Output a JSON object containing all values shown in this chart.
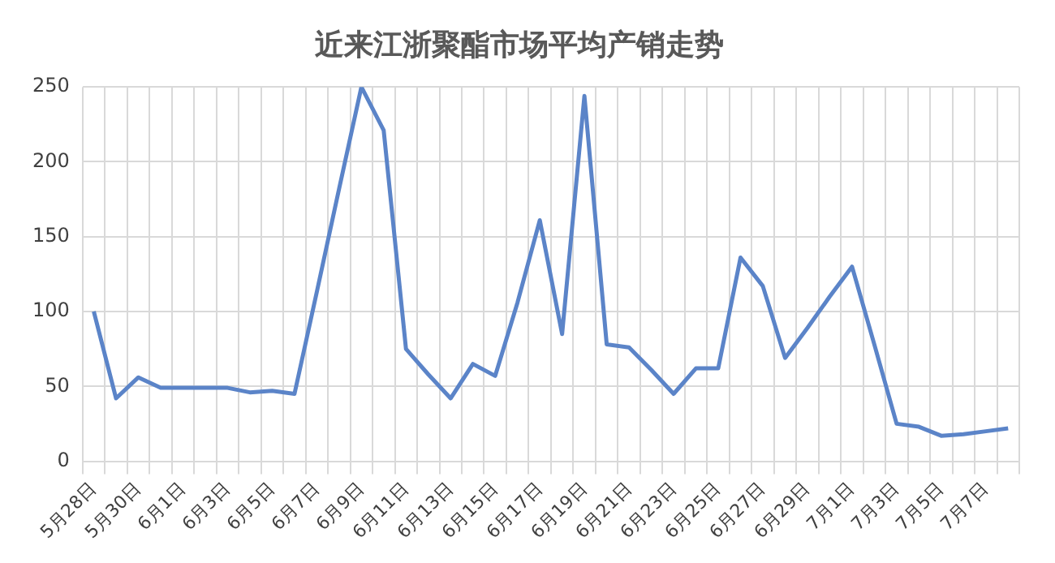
{
  "chart_data": {
    "type": "line",
    "title": "近来江浙聚酯市场平均产销走势",
    "categories": [
      "5月28日",
      null,
      "5月30日",
      null,
      "6月1日",
      null,
      "6月3日",
      null,
      "6月5日",
      null,
      "6月7日",
      null,
      "6月9日",
      null,
      "6月11日",
      null,
      "6月13日",
      null,
      "6月15日",
      null,
      "6月17日",
      null,
      "6月19日",
      null,
      "6月21日",
      null,
      "6月23日",
      null,
      "6月25日",
      null,
      "6月27日",
      null,
      "6月29日",
      null,
      "7月1日",
      null,
      "7月3日",
      null,
      "7月5日",
      null,
      "7月7日",
      null
    ],
    "series": [
      {
        "color": "#5b84c8",
        "values": [
          100,
          42,
          56,
          49,
          49,
          49,
          49,
          46,
          47,
          45,
          113,
          182,
          250,
          221,
          75,
          58,
          42,
          65,
          57,
          106,
          161,
          85,
          244,
          78,
          76,
          61,
          45,
          62,
          62,
          136,
          117,
          69,
          89,
          110,
          130,
          78,
          25,
          23,
          17,
          18,
          20,
          22
        ]
      }
    ],
    "ylim": [
      0,
      250
    ],
    "yticks": [
      0,
      50,
      100,
      150,
      200,
      250
    ],
    "grid": true,
    "legend": false,
    "marker": "none",
    "line_style": "solid"
  }
}
